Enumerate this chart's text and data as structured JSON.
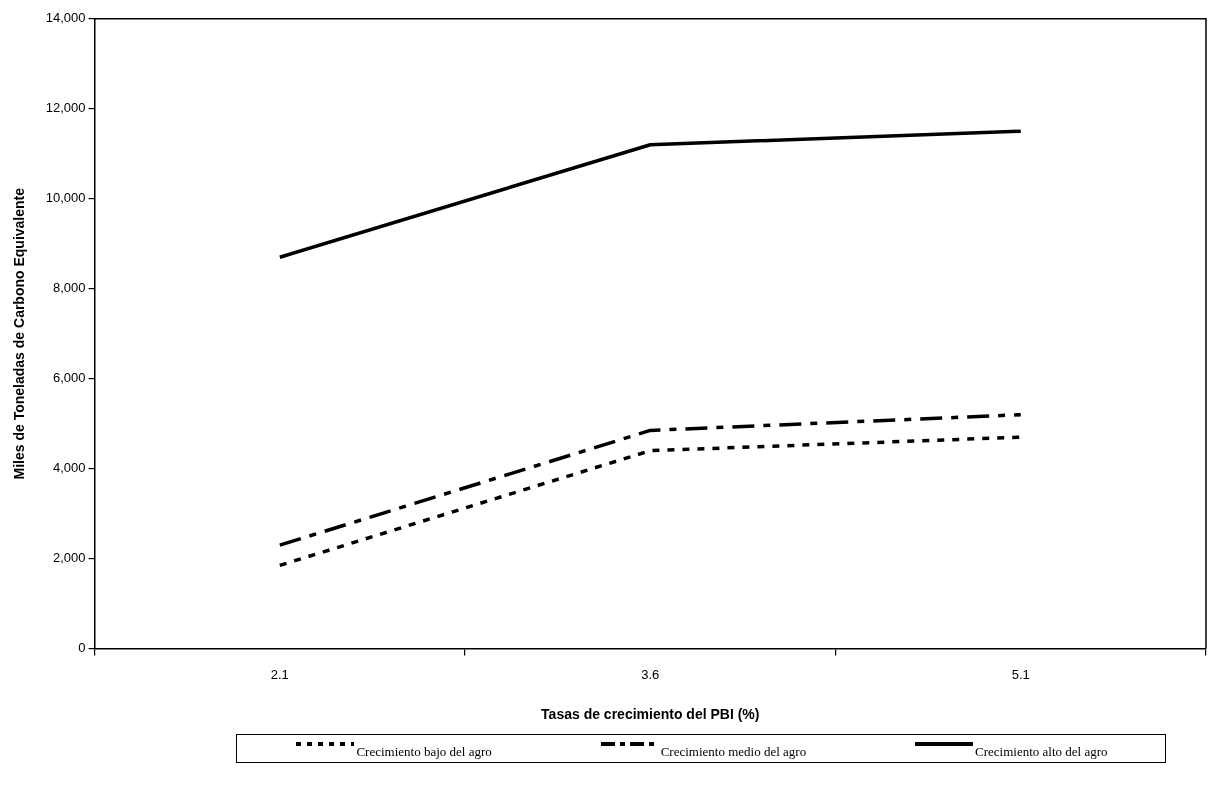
{
  "chart_data": {
    "type": "line",
    "xlabel": "Tasas de crecimiento del PBI (%)",
    "ylabel": "Miles de Toneladas de Carbono Equivalente",
    "categories": [
      "2.1",
      "3.6",
      "5.1"
    ],
    "series": [
      {
        "name": "Crecimiento bajo del agro",
        "color": "#000000",
        "line_style": "dotted",
        "values": [
          1850,
          4400,
          4700
        ]
      },
      {
        "name": "Crecimiento medio del agro",
        "color": "#000000",
        "line_style": "dashed",
        "values": [
          2300,
          4850,
          5200
        ]
      },
      {
        "name": "Crecimiento alto del agro",
        "color": "#000000",
        "line_style": "solid",
        "values": [
          8700,
          11200,
          11500
        ]
      }
    ],
    "ylim": [
      0,
      14000
    ],
    "yticks": [
      {
        "value": 0,
        "label": "0"
      },
      {
        "value": 2000,
        "label": "2,000"
      },
      {
        "value": 4000,
        "label": "4,000"
      },
      {
        "value": 6000,
        "label": "6,000"
      },
      {
        "value": 8000,
        "label": "8,000"
      },
      {
        "value": 10000,
        "label": "10,000"
      },
      {
        "value": 12000,
        "label": "12,000"
      },
      {
        "value": 14000,
        "label": "14,000"
      }
    ],
    "grid": false,
    "legend": "bottom",
    "marker": "none"
  }
}
